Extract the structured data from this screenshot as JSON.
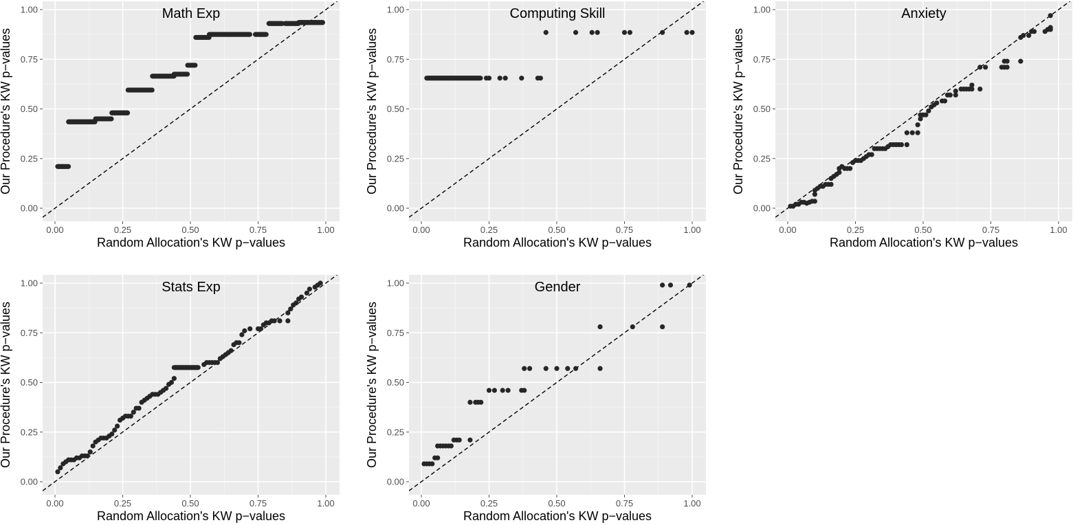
{
  "chart_data": [
    {
      "type": "scatter",
      "title": "Math Exp",
      "xlabel": "Random Allocation's KW p−values",
      "ylabel": "Our Procedure's KW p−values",
      "xlim": [
        0,
        1
      ],
      "ylim": [
        0,
        1
      ],
      "xticks": [
        "0.00",
        "0.25",
        "0.50",
        "0.75",
        "1.00"
      ],
      "yticks": [
        "0.00",
        "0.25",
        "0.50",
        "0.75",
        "1.00"
      ],
      "reference_line": "y = x (dashed)",
      "segments": [
        {
          "x0": 0.01,
          "x1": 0.05,
          "y": 0.21
        },
        {
          "x0": 0.05,
          "x1": 0.15,
          "y": 0.435
        },
        {
          "x0": 0.15,
          "x1": 0.21,
          "y": 0.45
        },
        {
          "x0": 0.21,
          "x1": 0.27,
          "y": 0.48
        },
        {
          "x0": 0.27,
          "x1": 0.36,
          "y": 0.595
        },
        {
          "x0": 0.36,
          "x1": 0.44,
          "y": 0.665
        },
        {
          "x0": 0.44,
          "x1": 0.49,
          "y": 0.675
        },
        {
          "x0": 0.49,
          "x1": 0.52,
          "y": 0.72
        },
        {
          "x0": 0.52,
          "x1": 0.57,
          "y": 0.86
        },
        {
          "x0": 0.57,
          "x1": 0.72,
          "y": 0.875
        },
        {
          "x0": 0.74,
          "x1": 0.78,
          "y": 0.875
        },
        {
          "x0": 0.79,
          "x1": 0.84,
          "y": 0.93
        },
        {
          "x0": 0.85,
          "x1": 0.9,
          "y": 0.93
        },
        {
          "x0": 0.9,
          "x1": 0.99,
          "y": 0.935
        }
      ],
      "points": []
    },
    {
      "type": "scatter",
      "title": "Computing Skill",
      "xlabel": "Random Allocation's KW p−values",
      "ylabel": "Our Procedure's KW p−values",
      "xlim": [
        0,
        1
      ],
      "ylim": [
        0,
        1
      ],
      "xticks": [
        "0.00",
        "0.25",
        "0.50",
        "0.75",
        "1.00"
      ],
      "yticks": [
        "0.00",
        "0.25",
        "0.50",
        "0.75",
        "1.00"
      ],
      "reference_line": "y = x (dashed)",
      "segments": [
        {
          "x0": 0.02,
          "x1": 0.22,
          "y": 0.655
        }
      ],
      "points": [
        [
          0.24,
          0.655
        ],
        [
          0.25,
          0.655
        ],
        [
          0.29,
          0.655
        ],
        [
          0.31,
          0.655
        ],
        [
          0.37,
          0.655
        ],
        [
          0.43,
          0.655
        ],
        [
          0.44,
          0.655
        ],
        [
          0.46,
          0.885
        ],
        [
          0.57,
          0.885
        ],
        [
          0.63,
          0.885
        ],
        [
          0.65,
          0.885
        ],
        [
          0.75,
          0.885
        ],
        [
          0.77,
          0.885
        ],
        [
          0.89,
          0.885
        ],
        [
          0.98,
          0.885
        ],
        [
          1.0,
          0.885
        ]
      ]
    },
    {
      "type": "scatter",
      "title": "Anxiety",
      "xlabel": "Random Allocation's KW p−values",
      "ylabel": "Our Procedure's KW p−values",
      "xlim": [
        0,
        1
      ],
      "ylim": [
        0,
        1
      ],
      "xticks": [
        "0.00",
        "0.25",
        "0.50",
        "0.75",
        "1.00"
      ],
      "yticks": [
        "0.00",
        "0.25",
        "0.50",
        "0.75",
        "1.00"
      ],
      "reference_line": "y = x (dashed)",
      "segments": [],
      "points": [
        [
          0.01,
          0.01
        ],
        [
          0.02,
          0.01
        ],
        [
          0.03,
          0.02
        ],
        [
          0.04,
          0.02
        ],
        [
          0.05,
          0.03
        ],
        [
          0.06,
          0.03
        ],
        [
          0.07,
          0.025
        ],
        [
          0.08,
          0.03
        ],
        [
          0.09,
          0.035
        ],
        [
          0.1,
          0.035
        ],
        [
          0.1,
          0.07
        ],
        [
          0.1,
          0.09
        ],
        [
          0.11,
          0.1
        ],
        [
          0.12,
          0.11
        ],
        [
          0.13,
          0.11
        ],
        [
          0.14,
          0.12
        ],
        [
          0.15,
          0.12
        ],
        [
          0.16,
          0.12
        ],
        [
          0.16,
          0.15
        ],
        [
          0.17,
          0.16
        ],
        [
          0.18,
          0.17
        ],
        [
          0.19,
          0.18
        ],
        [
          0.19,
          0.2
        ],
        [
          0.2,
          0.21
        ],
        [
          0.21,
          0.2
        ],
        [
          0.22,
          0.2
        ],
        [
          0.23,
          0.2
        ],
        [
          0.24,
          0.23
        ],
        [
          0.25,
          0.24
        ],
        [
          0.26,
          0.24
        ],
        [
          0.27,
          0.24
        ],
        [
          0.28,
          0.25
        ],
        [
          0.29,
          0.26
        ],
        [
          0.3,
          0.27
        ],
        [
          0.31,
          0.27
        ],
        [
          0.32,
          0.3
        ],
        [
          0.33,
          0.3
        ],
        [
          0.34,
          0.3
        ],
        [
          0.35,
          0.3
        ],
        [
          0.36,
          0.3
        ],
        [
          0.37,
          0.31
        ],
        [
          0.38,
          0.32
        ],
        [
          0.39,
          0.32
        ],
        [
          0.4,
          0.32
        ],
        [
          0.41,
          0.32
        ],
        [
          0.42,
          0.32
        ],
        [
          0.44,
          0.32
        ],
        [
          0.44,
          0.38
        ],
        [
          0.46,
          0.38
        ],
        [
          0.48,
          0.38
        ],
        [
          0.48,
          0.42
        ],
        [
          0.49,
          0.45
        ],
        [
          0.49,
          0.47
        ],
        [
          0.5,
          0.47
        ],
        [
          0.51,
          0.47
        ],
        [
          0.52,
          0.49
        ],
        [
          0.53,
          0.51
        ],
        [
          0.54,
          0.52
        ],
        [
          0.55,
          0.53
        ],
        [
          0.57,
          0.54
        ],
        [
          0.58,
          0.54
        ],
        [
          0.59,
          0.57
        ],
        [
          0.6,
          0.57
        ],
        [
          0.62,
          0.57
        ],
        [
          0.62,
          0.59
        ],
        [
          0.64,
          0.6
        ],
        [
          0.65,
          0.6
        ],
        [
          0.66,
          0.6
        ],
        [
          0.67,
          0.6
        ],
        [
          0.68,
          0.6
        ],
        [
          0.68,
          0.62
        ],
        [
          0.71,
          0.6
        ],
        [
          0.71,
          0.71
        ],
        [
          0.73,
          0.71
        ],
        [
          0.79,
          0.71
        ],
        [
          0.8,
          0.71
        ],
        [
          0.8,
          0.74
        ],
        [
          0.81,
          0.74
        ],
        [
          0.81,
          0.71
        ],
        [
          0.86,
          0.74
        ],
        [
          0.86,
          0.86
        ],
        [
          0.87,
          0.87
        ],
        [
          0.89,
          0.87
        ],
        [
          0.9,
          0.89
        ],
        [
          0.91,
          0.89
        ],
        [
          0.95,
          0.89
        ],
        [
          0.96,
          0.9
        ],
        [
          0.97,
          0.9
        ],
        [
          0.97,
          0.91
        ],
        [
          0.97,
          0.97
        ]
      ]
    },
    {
      "type": "scatter",
      "title": "Stats Exp",
      "xlabel": "Random Allocation's KW p−values",
      "ylabel": "Our Procedure's KW p−values",
      "xlim": [
        0,
        1
      ],
      "ylim": [
        0,
        1
      ],
      "xticks": [
        "0.00",
        "0.25",
        "0.50",
        "0.75",
        "1.00"
      ],
      "yticks": [
        "0.00",
        "0.25",
        "0.50",
        "0.75",
        "1.00"
      ],
      "reference_line": "y = x (dashed)",
      "segments": [
        {
          "x0": 0.44,
          "x1": 0.53,
          "y": 0.575
        }
      ],
      "points": [
        [
          0.01,
          0.05
        ],
        [
          0.02,
          0.07
        ],
        [
          0.03,
          0.09
        ],
        [
          0.04,
          0.1
        ],
        [
          0.05,
          0.11
        ],
        [
          0.06,
          0.11
        ],
        [
          0.07,
          0.11
        ],
        [
          0.08,
          0.12
        ],
        [
          0.09,
          0.12
        ],
        [
          0.1,
          0.13
        ],
        [
          0.11,
          0.13
        ],
        [
          0.12,
          0.13
        ],
        [
          0.13,
          0.15
        ],
        [
          0.14,
          0.18
        ],
        [
          0.15,
          0.2
        ],
        [
          0.16,
          0.21
        ],
        [
          0.17,
          0.22
        ],
        [
          0.18,
          0.22
        ],
        [
          0.19,
          0.22
        ],
        [
          0.2,
          0.23
        ],
        [
          0.21,
          0.24
        ],
        [
          0.22,
          0.26
        ],
        [
          0.23,
          0.28
        ],
        [
          0.24,
          0.31
        ],
        [
          0.25,
          0.32
        ],
        [
          0.26,
          0.33
        ],
        [
          0.27,
          0.33
        ],
        [
          0.28,
          0.33
        ],
        [
          0.29,
          0.35
        ],
        [
          0.3,
          0.37
        ],
        [
          0.31,
          0.37
        ],
        [
          0.32,
          0.4
        ],
        [
          0.33,
          0.41
        ],
        [
          0.34,
          0.42
        ],
        [
          0.35,
          0.43
        ],
        [
          0.36,
          0.44
        ],
        [
          0.37,
          0.44
        ],
        [
          0.38,
          0.44
        ],
        [
          0.39,
          0.45
        ],
        [
          0.4,
          0.46
        ],
        [
          0.41,
          0.47
        ],
        [
          0.42,
          0.49
        ],
        [
          0.43,
          0.5
        ],
        [
          0.44,
          0.52
        ],
        [
          0.55,
          0.59
        ],
        [
          0.56,
          0.6
        ],
        [
          0.57,
          0.6
        ],
        [
          0.58,
          0.6
        ],
        [
          0.59,
          0.6
        ],
        [
          0.6,
          0.6
        ],
        [
          0.61,
          0.62
        ],
        [
          0.62,
          0.63
        ],
        [
          0.63,
          0.64
        ],
        [
          0.64,
          0.65
        ],
        [
          0.65,
          0.66
        ],
        [
          0.66,
          0.69
        ],
        [
          0.67,
          0.7
        ],
        [
          0.68,
          0.7
        ],
        [
          0.69,
          0.74
        ],
        [
          0.7,
          0.76
        ],
        [
          0.72,
          0.77
        ],
        [
          0.75,
          0.77
        ],
        [
          0.76,
          0.77
        ],
        [
          0.77,
          0.79
        ],
        [
          0.78,
          0.8
        ],
        [
          0.79,
          0.8
        ],
        [
          0.8,
          0.81
        ],
        [
          0.81,
          0.81
        ],
        [
          0.83,
          0.81
        ],
        [
          0.86,
          0.81
        ],
        [
          0.86,
          0.85
        ],
        [
          0.87,
          0.87
        ],
        [
          0.88,
          0.89
        ],
        [
          0.89,
          0.9
        ],
        [
          0.9,
          0.92
        ],
        [
          0.91,
          0.93
        ],
        [
          0.93,
          0.95
        ],
        [
          0.94,
          0.97
        ],
        [
          0.96,
          0.98
        ],
        [
          0.97,
          0.99
        ],
        [
          0.98,
          1.0
        ]
      ]
    },
    {
      "type": "scatter",
      "title": "Gender",
      "xlabel": "Random Allocation's KW p−values",
      "ylabel": "Our Procedure's KW p−values",
      "xlim": [
        0,
        1
      ],
      "ylim": [
        0,
        1
      ],
      "xticks": [
        "0.00",
        "0.25",
        "0.50",
        "0.75",
        "1.00"
      ],
      "yticks": [
        "0.00",
        "0.25",
        "0.50",
        "0.75",
        "1.00"
      ],
      "reference_line": "y = x (dashed)",
      "segments": [],
      "points": [
        [
          0.01,
          0.09
        ],
        [
          0.02,
          0.09
        ],
        [
          0.03,
          0.09
        ],
        [
          0.04,
          0.09
        ],
        [
          0.05,
          0.12
        ],
        [
          0.06,
          0.12
        ],
        [
          0.06,
          0.18
        ],
        [
          0.07,
          0.18
        ],
        [
          0.08,
          0.18
        ],
        [
          0.09,
          0.18
        ],
        [
          0.1,
          0.18
        ],
        [
          0.11,
          0.18
        ],
        [
          0.12,
          0.21
        ],
        [
          0.13,
          0.21
        ],
        [
          0.14,
          0.21
        ],
        [
          0.18,
          0.21
        ],
        [
          0.18,
          0.4
        ],
        [
          0.2,
          0.4
        ],
        [
          0.21,
          0.4
        ],
        [
          0.22,
          0.4
        ],
        [
          0.25,
          0.46
        ],
        [
          0.27,
          0.46
        ],
        [
          0.3,
          0.46
        ],
        [
          0.32,
          0.46
        ],
        [
          0.37,
          0.46
        ],
        [
          0.38,
          0.46
        ],
        [
          0.38,
          0.57
        ],
        [
          0.4,
          0.57
        ],
        [
          0.46,
          0.57
        ],
        [
          0.5,
          0.57
        ],
        [
          0.54,
          0.57
        ],
        [
          0.57,
          0.57
        ],
        [
          0.66,
          0.57
        ],
        [
          0.66,
          0.78
        ],
        [
          0.78,
          0.78
        ],
        [
          0.89,
          0.78
        ],
        [
          0.89,
          0.99
        ],
        [
          0.92,
          0.99
        ],
        [
          0.99,
          0.99
        ]
      ]
    }
  ]
}
